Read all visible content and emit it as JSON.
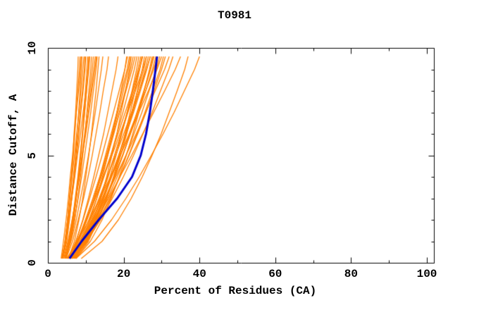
{
  "chart_data": {
    "type": "line",
    "title": "T0981",
    "xlabel": "Percent of Residues (CA)",
    "ylabel": "Distance Cutoff, A",
    "xlim": [
      0,
      100
    ],
    "ylim": [
      0,
      10
    ],
    "x_ticks_major": [
      0,
      20,
      40,
      60,
      80,
      100
    ],
    "x_tick_minor_step": 10,
    "y_ticks_major": [
      0,
      5,
      10
    ],
    "y_tick_minor_step": 1,
    "grid": false,
    "legend": "none",
    "frame": "box-with-inward-mirrored-ticks",
    "colors": {
      "model_lines": "#ff8000",
      "highlight_line": "#0000cc",
      "frame": "#000000",
      "background": "#ffffff"
    },
    "y_samples": [
      0.2,
      1,
      2,
      3,
      4,
      5,
      6,
      7,
      8,
      9,
      9.6
    ],
    "highlight": {
      "name": "consensus-best-model-line",
      "color": "#0000cc",
      "line_width": 3,
      "x": [
        5.7,
        8.9,
        13.4,
        18.3,
        22.2,
        24.5,
        25.9,
        26.9,
        27.7,
        28.4,
        28.8
      ]
    },
    "models": {
      "name": "predicted-model-lines",
      "color": "#ff8000",
      "line_width": 1.3,
      "x_per_curve": [
        [
          3.8,
          4.6,
          5.2,
          5.7,
          6.2,
          6.6,
          6.9,
          7.3,
          7.6,
          7.9,
          8.0
        ],
        [
          3.8,
          4.5,
          5.2,
          5.7,
          6.2,
          6.7,
          7.1,
          7.5,
          7.9,
          8.3,
          8.5
        ],
        [
          3.5,
          4.1,
          4.8,
          5.4,
          5.9,
          6.5,
          7.0,
          7.5,
          8.1,
          8.6,
          8.8
        ],
        [
          4.0,
          5.0,
          5.7,
          6.3,
          6.8,
          7.3,
          7.7,
          8.1,
          8.5,
          8.8,
          9.0
        ],
        [
          3.8,
          4.5,
          5.2,
          5.8,
          6.4,
          7.0,
          7.6,
          8.2,
          8.7,
          9.2,
          9.5
        ],
        [
          3.6,
          4.6,
          5.4,
          6.1,
          6.8,
          7.4,
          8.0,
          8.5,
          9.1,
          9.6,
          9.8
        ],
        [
          3.8,
          4.8,
          5.6,
          6.3,
          7.0,
          7.6,
          8.2,
          8.7,
          9.3,
          9.8,
          10.0
        ],
        [
          4.8,
          5.9,
          6.8,
          7.5,
          8.0,
          8.6,
          9.1,
          9.5,
          9.9,
          10.3,
          10.5
        ],
        [
          4.6,
          5.8,
          6.7,
          7.5,
          8.1,
          8.7,
          9.2,
          9.7,
          10.2,
          10.6,
          10.8
        ],
        [
          3.8,
          4.6,
          5.5,
          6.3,
          7.1,
          7.8,
          8.6,
          9.3,
          10.0,
          10.7,
          11.0
        ],
        [
          4.7,
          5.6,
          6.5,
          7.2,
          7.9,
          8.5,
          9.1,
          9.7,
          10.2,
          10.8,
          11.0
        ],
        [
          4.7,
          6.0,
          7.1,
          7.9,
          8.6,
          9.2,
          9.8,
          10.3,
          10.8,
          11.3,
          11.5
        ],
        [
          4.2,
          5.3,
          6.4,
          7.4,
          8.2,
          9.0,
          9.7,
          10.4,
          11.1,
          11.7,
          12.0
        ],
        [
          4.7,
          5.6,
          6.6,
          7.4,
          8.3,
          9.1,
          9.9,
          10.7,
          11.4,
          12.1,
          12.5
        ],
        [
          4.4,
          5.4,
          6.4,
          7.4,
          8.3,
          9.1,
          10.0,
          10.8,
          11.6,
          12.4,
          12.8
        ],
        [
          4.6,
          5.9,
          7.0,
          8.0,
          8.9,
          9.7,
          10.5,
          11.3,
          12.0,
          12.7,
          13.0
        ],
        [
          5.4,
          7.0,
          8.2,
          9.2,
          10.0,
          10.8,
          11.5,
          12.1,
          12.7,
          13.2,
          13.5
        ],
        [
          4.6,
          6.1,
          7.5,
          8.6,
          9.7,
          10.7,
          11.6,
          12.5,
          13.3,
          14.1,
          14.5
        ],
        [
          4.8,
          6.5,
          8.0,
          9.4,
          10.6,
          11.7,
          12.7,
          13.7,
          14.6,
          15.6,
          16.0
        ],
        [
          5.4,
          7.4,
          9.2,
          10.7,
          12.1,
          13.4,
          14.7,
          15.8,
          16.9,
          18.0,
          18.5
        ],
        [
          6.0,
          8.9,
          11.1,
          12.9,
          14.4,
          15.8,
          17.0,
          18.2,
          19.3,
          20.3,
          20.8
        ],
        [
          5.6,
          7.4,
          9.3,
          11.0,
          12.7,
          14.3,
          15.8,
          17.3,
          18.8,
          20.3,
          21.0
        ],
        [
          5.4,
          7.8,
          10.0,
          11.9,
          13.7,
          15.2,
          16.7,
          18.2,
          19.5,
          20.9,
          21.5
        ],
        [
          5.7,
          8.1,
          10.3,
          12.2,
          13.9,
          15.5,
          17.0,
          18.5,
          19.9,
          21.2,
          21.8
        ],
        [
          6.9,
          9.8,
          12.1,
          13.9,
          15.5,
          16.9,
          18.2,
          19.3,
          20.5,
          21.5,
          22.0
        ],
        [
          5.2,
          7.8,
          10.2,
          12.3,
          14.1,
          15.8,
          17.4,
          18.9,
          20.4,
          21.8,
          22.5
        ],
        [
          5.9,
          7.8,
          9.9,
          11.9,
          13.7,
          15.5,
          17.2,
          18.9,
          20.6,
          22.2,
          23.0
        ],
        [
          5.7,
          8.4,
          10.8,
          12.9,
          14.8,
          16.6,
          18.2,
          19.8,
          21.3,
          22.8,
          23.5
        ],
        [
          6.4,
          9.8,
          12.5,
          14.6,
          16.4,
          18.0,
          19.5,
          20.9,
          22.2,
          23.4,
          24.0
        ],
        [
          6.8,
          9.4,
          11.9,
          14.0,
          15.9,
          17.6,
          19.3,
          20.9,
          22.4,
          23.8,
          24.5
        ],
        [
          7.3,
          10.7,
          13.3,
          15.5,
          17.3,
          18.9,
          20.4,
          21.7,
          23.0,
          24.2,
          24.8
        ],
        [
          6.0,
          8.8,
          11.5,
          13.7,
          15.7,
          17.6,
          19.4,
          21.1,
          22.7,
          24.2,
          25.0
        ],
        [
          5.8,
          8.0,
          10.3,
          12.5,
          14.6,
          16.6,
          18.5,
          20.4,
          22.3,
          24.1,
          25.0
        ],
        [
          6.8,
          10.4,
          13.2,
          15.5,
          17.4,
          19.2,
          20.8,
          22.2,
          23.6,
          24.9,
          25.5
        ],
        [
          7.2,
          10.0,
          12.6,
          14.8,
          16.8,
          18.7,
          20.4,
          22.1,
          23.7,
          25.3,
          26.0
        ],
        [
          5.2,
          7.6,
          10.2,
          12.5,
          14.7,
          16.9,
          19.0,
          21.1,
          23.1,
          25.0,
          26.0
        ],
        [
          6.4,
          9.5,
          12.2,
          14.6,
          16.7,
          18.7,
          20.6,
          22.4,
          24.1,
          25.7,
          26.5
        ],
        [
          5.5,
          8.8,
          11.7,
          14.3,
          16.6,
          18.7,
          20.7,
          22.6,
          24.4,
          26.1,
          27.0
        ],
        [
          6.2,
          8.6,
          11.2,
          13.5,
          15.7,
          17.9,
          20.0,
          22.1,
          24.1,
          26.0,
          27.0
        ],
        [
          7.4,
          11.2,
          14.3,
          16.7,
          18.8,
          20.7,
          22.4,
          24.0,
          25.4,
          26.8,
          27.5
        ],
        [
          7.1,
          10.2,
          13.1,
          15.5,
          17.7,
          19.8,
          21.7,
          23.5,
          25.3,
          27.0,
          27.8
        ],
        [
          6.5,
          9.8,
          12.7,
          15.3,
          17.6,
          19.7,
          21.7,
          23.6,
          25.4,
          27.1,
          28.0
        ],
        [
          5.9,
          9.3,
          12.4,
          15.1,
          17.5,
          19.7,
          21.8,
          23.9,
          25.8,
          27.6,
          28.5
        ],
        [
          6.5,
          9.1,
          11.8,
          14.4,
          16.8,
          19.1,
          21.4,
          23.6,
          25.8,
          27.9,
          29.0
        ],
        [
          6.5,
          9.9,
          13.1,
          15.8,
          18.3,
          20.6,
          22.7,
          24.8,
          26.7,
          28.6,
          29.5
        ],
        [
          5.0,
          7.8,
          10.9,
          13.8,
          16.5,
          19.1,
          21.6,
          24.0,
          26.5,
          28.8,
          30.0
        ],
        [
          6.9,
          10.4,
          13.7,
          16.5,
          19.0,
          21.3,
          23.5,
          25.6,
          27.6,
          29.6,
          30.5
        ],
        [
          6.3,
          10.0,
          13.4,
          16.3,
          19.0,
          21.4,
          23.7,
          25.9,
          28.0,
          30.0,
          31.0
        ],
        [
          6.0,
          9.0,
          12.2,
          15.1,
          17.9,
          20.6,
          23.3,
          25.8,
          28.3,
          30.8,
          32.0
        ],
        [
          6.1,
          10.2,
          13.9,
          17.0,
          19.9,
          22.6,
          25.1,
          27.5,
          29.7,
          31.9,
          33.0
        ],
        [
          6.4,
          9.4,
          12.8,
          16.0,
          19.0,
          22.1,
          25.0,
          27.9,
          30.8,
          33.6,
          35.0
        ],
        [
          8.8,
          14.3,
          18.6,
          22.0,
          24.9,
          27.5,
          29.9,
          32.0,
          34.1,
          36.1,
          37.0
        ],
        [
          7.4,
          12.3,
          16.8,
          20.6,
          24.1,
          27.3,
          30.4,
          33.3,
          36.0,
          38.7,
          40.0
        ]
      ]
    }
  }
}
